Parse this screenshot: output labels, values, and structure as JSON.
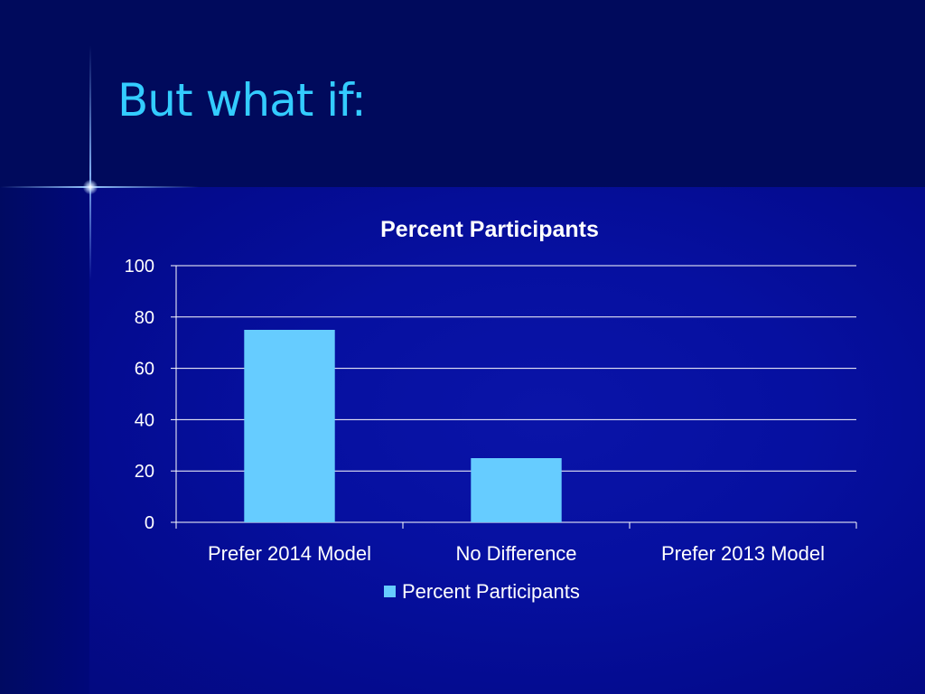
{
  "slide": {
    "title": "But what if:"
  },
  "colors": {
    "background": "#000a5c",
    "content_background": "#0610a0",
    "title": "#33ccff",
    "bar": "#66ccff",
    "axis": "#ffffff"
  },
  "chart_data": {
    "type": "bar",
    "title": "Percent Participants",
    "categories": [
      "Prefer 2014 Model",
      "No Difference",
      "Prefer 2013 Model"
    ],
    "series": [
      {
        "name": "Percent Participants",
        "values": [
          75,
          25,
          0
        ]
      }
    ],
    "ylim": [
      0,
      100
    ],
    "yticks": [
      0,
      20,
      40,
      60,
      80,
      100
    ],
    "grid": true,
    "legend": "bottom"
  }
}
